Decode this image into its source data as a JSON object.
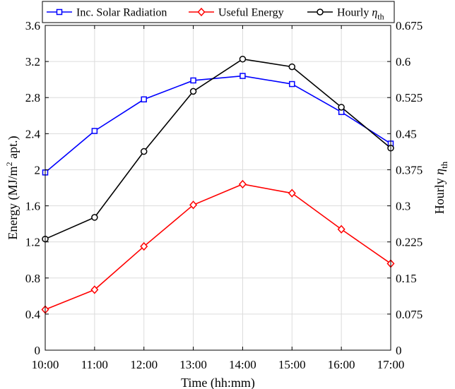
{
  "chart_data": {
    "type": "line",
    "categories": [
      "10:00",
      "11:00",
      "12:00",
      "13:00",
      "14:00",
      "15:00",
      "16:00",
      "17:00"
    ],
    "xlabel": "Time (hh:mm)",
    "ylabel": {
      "main": "Energy (MJ/m",
      "sup": "2",
      "tail": " apt.)"
    },
    "y2label": {
      "main": "Hourly ",
      "symbol": "η",
      "sub": "th"
    },
    "ylim": [
      0,
      3.6
    ],
    "y_ticks": [
      "0",
      "0.4",
      "0.8",
      "1.2",
      "1.6",
      "2",
      "2.4",
      "2.8",
      "3.2",
      "3.6"
    ],
    "y2lim": [
      0,
      0.675
    ],
    "y2_ticks": [
      "0",
      "0.075",
      "0.15",
      "0.225",
      "0.3",
      "0.375",
      "0.45",
      "0.525",
      "0.6",
      "0.675"
    ],
    "grid": true,
    "legend_position": "top",
    "series": [
      {
        "name": "Inc. Solar Radiation",
        "axis": "left",
        "color": "#0000ff",
        "marker": "square",
        "values": [
          1.97,
          2.43,
          2.78,
          2.99,
          3.04,
          2.95,
          2.64,
          2.29
        ]
      },
      {
        "name": "Useful Energy",
        "axis": "left",
        "color": "#ff0000",
        "marker": "diamond",
        "values": [
          0.45,
          0.67,
          1.15,
          1.61,
          1.84,
          1.74,
          1.34,
          0.96
        ]
      },
      {
        "name": "Hourly ",
        "name_symbol": "η",
        "name_sub": "th",
        "axis": "right",
        "color": "#000000",
        "marker": "circle",
        "values": [
          0.231,
          0.276,
          0.413,
          0.538,
          0.605,
          0.589,
          0.505,
          0.42
        ]
      }
    ]
  }
}
